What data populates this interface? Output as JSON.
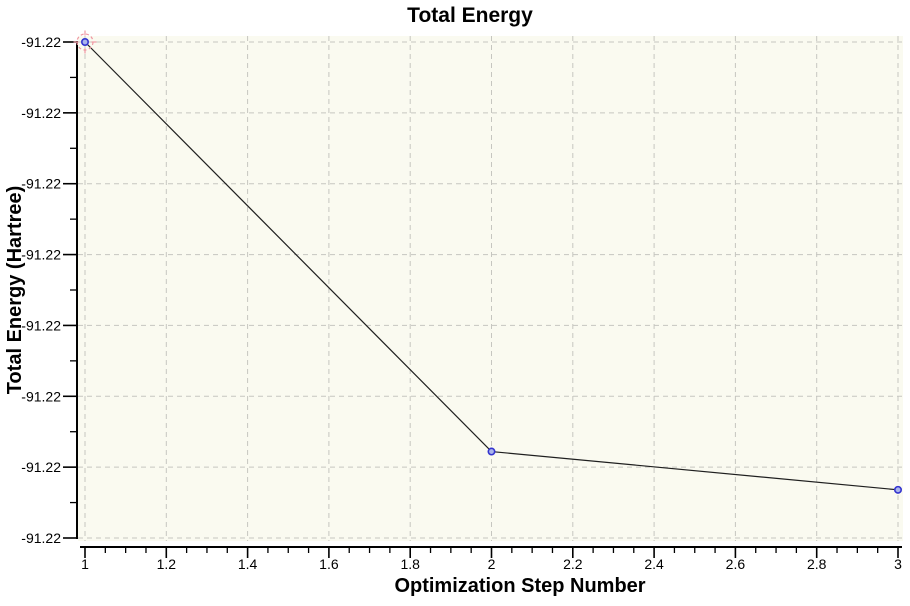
{
  "chart_data": {
    "type": "line",
    "title": "Total Energy",
    "xlabel": "Optimization Step Number",
    "ylabel": "Total Energy (Hartree)",
    "x": [
      1,
      2,
      3
    ],
    "y": [
      -91.2195,
      -91.22239,
      -91.22266
    ],
    "xlim": [
      1,
      3
    ],
    "ylim": [
      -91.223,
      -91.2195
    ],
    "x_tick_values": [
      1,
      1.2,
      1.4,
      1.6,
      1.8,
      2,
      2.2,
      2.4,
      2.6,
      2.8,
      3
    ],
    "x_tick_labels": [
      "1",
      "1.2",
      "1.4",
      "1.6",
      "1.8",
      "2",
      "2.2",
      "2.4",
      "2.6",
      "2.8",
      "3"
    ],
    "x_minor_divisions": 4,
    "y_tick_count": 8,
    "y_tick_labels": [
      "-91.22",
      "-91.22",
      "-91.22",
      "-91.22",
      "-91.22",
      "-91.22",
      "-91.22",
      "-91.22"
    ],
    "y_minor_divisions": 2,
    "grid": "dashed-major-both-axes",
    "legend": "none",
    "selected_point_index": 0,
    "marker": "circle",
    "colors": {
      "plot_background": "#fafaf0",
      "grid": "#c6c6c0",
      "series_line": "#1f1f1f",
      "marker_fill": "#aab4ec",
      "marker_stroke": "#3434cf",
      "selection_ring": "#ef97a2",
      "axis": "#000000",
      "text": "#000000"
    }
  }
}
